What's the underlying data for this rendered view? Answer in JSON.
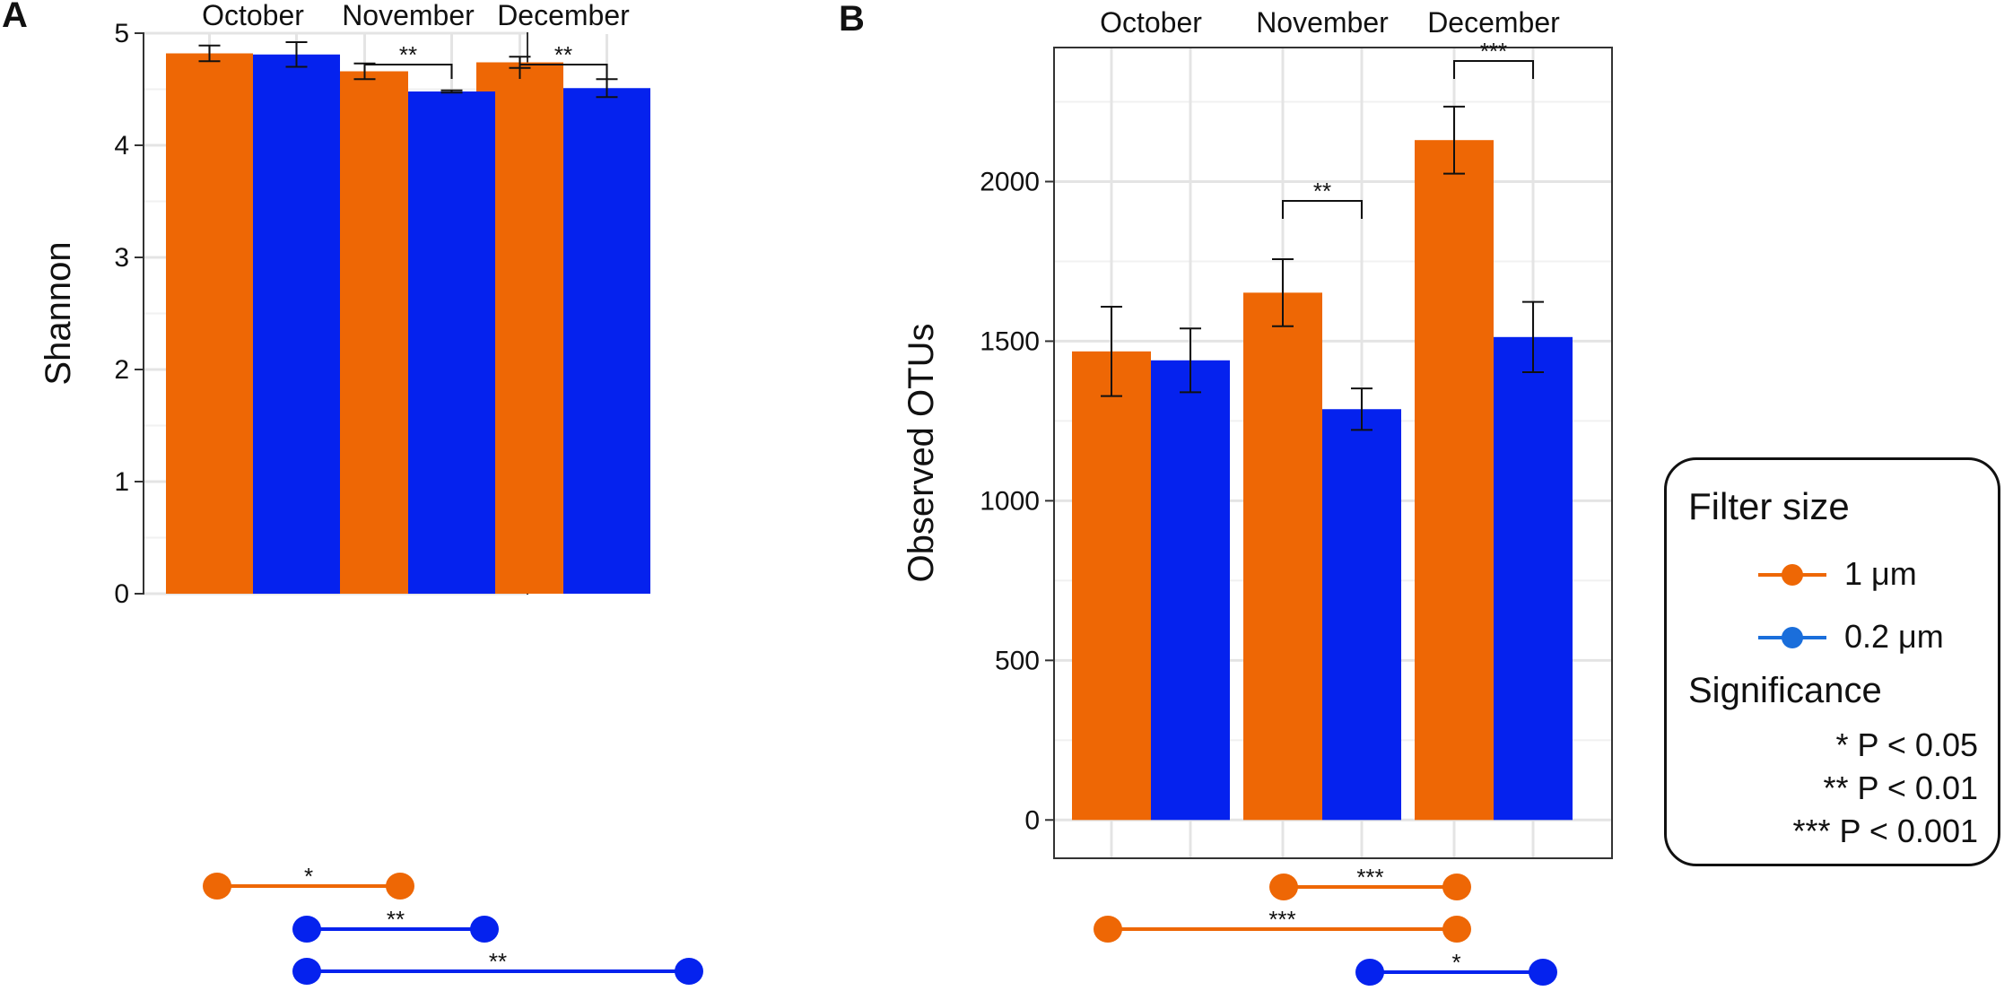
{
  "chart_data": [
    {
      "panel": "A",
      "type": "bar",
      "title": "",
      "xlabel": "",
      "ylabel": "Shannon",
      "ylim": [
        0,
        5
      ],
      "yticks": [
        0,
        1,
        2,
        3,
        4,
        5
      ],
      "facets": [
        "October",
        "November",
        "December"
      ],
      "series": [
        {
          "name": "1 μm",
          "color": "#EE6705",
          "values": [
            4.82,
            4.66,
            4.74
          ],
          "errors": [
            0.07,
            0.07,
            0.05
          ]
        },
        {
          "name": "0.2 μm",
          "color": "#0522EE",
          "values": [
            4.81,
            4.48,
            4.51
          ],
          "errors": [
            0.11,
            0.01,
            0.08
          ]
        }
      ],
      "within_month_significance": [
        {
          "month": "November",
          "label": "**"
        },
        {
          "month": "December",
          "label": "**"
        }
      ],
      "between_month_comparisons": [
        {
          "series": "1 μm",
          "from": "October",
          "to": "November",
          "label": "*"
        },
        {
          "series": "0.2 μm",
          "from": "October",
          "to": "November",
          "label": "**"
        },
        {
          "series": "0.2 μm",
          "from": "October",
          "to": "December",
          "label": "**"
        }
      ],
      "grid": true
    },
    {
      "panel": "B",
      "type": "bar",
      "title": "",
      "xlabel": "",
      "ylabel": "Observed OTUs",
      "ylim": [
        -120,
        2420
      ],
      "yticks": [
        0,
        500,
        1000,
        1500,
        2000
      ],
      "facets": [
        "October",
        "November",
        "December"
      ],
      "series": [
        {
          "name": "1 μm",
          "color": "#EE6705",
          "values": [
            1468,
            1652,
            2130
          ],
          "errors": [
            140,
            105,
            105
          ]
        },
        {
          "name": "0.2 μm",
          "color": "#0522EE",
          "values": [
            1440,
            1287,
            1513
          ],
          "errors": [
            100,
            65,
            110
          ]
        }
      ],
      "within_month_significance": [
        {
          "month": "November",
          "label": "**"
        },
        {
          "month": "December",
          "label": "***"
        }
      ],
      "between_month_comparisons": [
        {
          "series": "1 μm",
          "from": "November",
          "to": "December",
          "label": "***"
        },
        {
          "series": "1 μm",
          "from": "October",
          "to": "December",
          "label": "***"
        },
        {
          "series": "0.2 μm",
          "from": "November",
          "to": "December",
          "label": "*"
        }
      ],
      "grid": true
    }
  ],
  "panel_labels": {
    "a": "A",
    "b": "B"
  },
  "legend": {
    "title": "Filter size",
    "items": [
      {
        "label": "1 μm",
        "color": "#EE6705"
      },
      {
        "label": "0.2 μm",
        "color": "#0522EE"
      }
    ],
    "significance_title": "Significance",
    "significance_items": [
      "* P < 0.05",
      "** P < 0.01",
      "*** P < 0.001"
    ]
  }
}
